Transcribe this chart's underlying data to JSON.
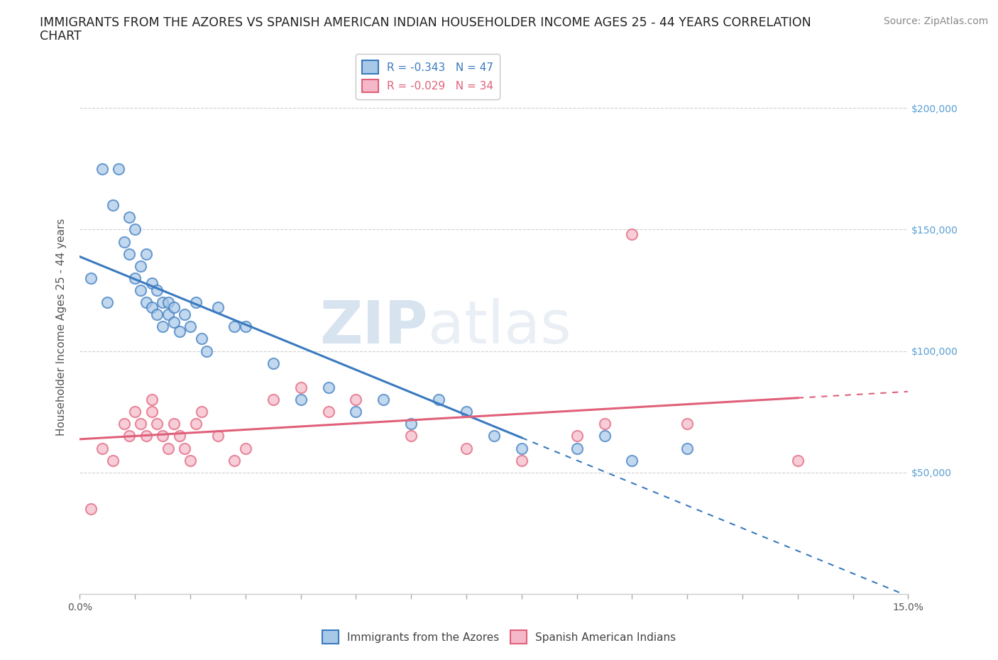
{
  "title_line1": "IMMIGRANTS FROM THE AZORES VS SPANISH AMERICAN INDIAN HOUSEHOLDER INCOME AGES 25 - 44 YEARS CORRELATION",
  "title_line2": "CHART",
  "source": "Source: ZipAtlas.com",
  "ylabel": "Householder Income Ages 25 - 44 years",
  "xlim": [
    0,
    0.15
  ],
  "ylim": [
    0,
    220000
  ],
  "blue_label": "Immigrants from the Azores",
  "pink_label": "Spanish American Indians",
  "R_blue": -0.343,
  "N_blue": 47,
  "R_pink": -0.029,
  "N_pink": 34,
  "watermark": "ZIPatlas",
  "background_color": "#ffffff",
  "grid_color": "#d0d0d0",
  "blue_scatter_color": "#a8c8e8",
  "pink_scatter_color": "#f4b8c8",
  "blue_line_color": "#3a7abf",
  "pink_line_color": "#e0607a",
  "title_color": "#222222",
  "axis_label_color": "#555555",
  "tick_color": "#555555",
  "right_tick_color": "#5a9fd4",
  "blue_legend_color": "#3a7abf",
  "pink_legend_color": "#e0607a",
  "blue_scatter_x": [
    0.002,
    0.004,
    0.005,
    0.006,
    0.007,
    0.008,
    0.009,
    0.009,
    0.01,
    0.01,
    0.011,
    0.011,
    0.012,
    0.012,
    0.013,
    0.013,
    0.014,
    0.014,
    0.015,
    0.015,
    0.016,
    0.016,
    0.017,
    0.017,
    0.018,
    0.019,
    0.02,
    0.021,
    0.022,
    0.023,
    0.025,
    0.028,
    0.03,
    0.035,
    0.04,
    0.045,
    0.05,
    0.055,
    0.06,
    0.065,
    0.07,
    0.075,
    0.08,
    0.09,
    0.095,
    0.1,
    0.11
  ],
  "blue_scatter_y": [
    130000,
    175000,
    120000,
    160000,
    175000,
    145000,
    140000,
    155000,
    130000,
    150000,
    125000,
    135000,
    120000,
    140000,
    118000,
    128000,
    115000,
    125000,
    110000,
    120000,
    115000,
    120000,
    112000,
    118000,
    108000,
    115000,
    110000,
    120000,
    105000,
    100000,
    118000,
    110000,
    110000,
    95000,
    80000,
    85000,
    75000,
    80000,
    70000,
    80000,
    75000,
    65000,
    60000,
    60000,
    65000,
    55000,
    60000
  ],
  "pink_scatter_x": [
    0.002,
    0.004,
    0.006,
    0.008,
    0.009,
    0.01,
    0.011,
    0.012,
    0.013,
    0.013,
    0.014,
    0.015,
    0.016,
    0.017,
    0.018,
    0.019,
    0.02,
    0.021,
    0.022,
    0.025,
    0.028,
    0.03,
    0.035,
    0.04,
    0.045,
    0.05,
    0.06,
    0.07,
    0.08,
    0.09,
    0.095,
    0.1,
    0.11,
    0.13
  ],
  "pink_scatter_y": [
    35000,
    60000,
    55000,
    70000,
    65000,
    75000,
    70000,
    65000,
    75000,
    80000,
    70000,
    65000,
    60000,
    70000,
    65000,
    60000,
    55000,
    70000,
    75000,
    65000,
    55000,
    60000,
    80000,
    85000,
    75000,
    80000,
    65000,
    60000,
    55000,
    65000,
    70000,
    148000,
    70000,
    55000
  ],
  "blue_trend_start_x": 0.0,
  "blue_trend_solid_end_x": 0.08,
  "blue_trend_dash_end_x": 0.15,
  "pink_trend_start_x": 0.0,
  "pink_trend_solid_end_x": 0.13,
  "pink_trend_dash_end_x": 0.15,
  "title_fontsize": 12.5,
  "axis_label_fontsize": 11,
  "tick_fontsize": 10,
  "legend_fontsize": 11,
  "source_fontsize": 10
}
